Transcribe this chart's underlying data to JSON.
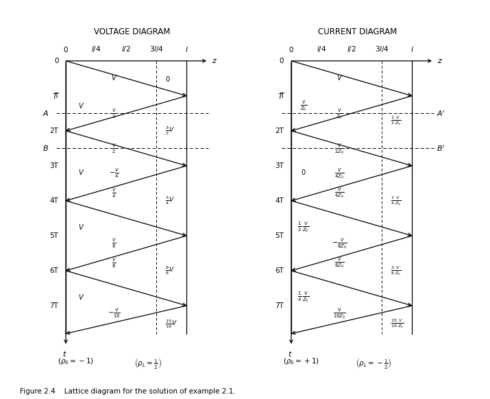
{
  "fig_width": 7.15,
  "fig_height": 5.82,
  "bg_color": "#ffffff",
  "title_voltage": "VOLTAGE DIAGRAM",
  "title_current": "CURRENT DIAGRAM",
  "caption": "Figure 2.4    Lattice diagram for the solution of example 2.1."
}
